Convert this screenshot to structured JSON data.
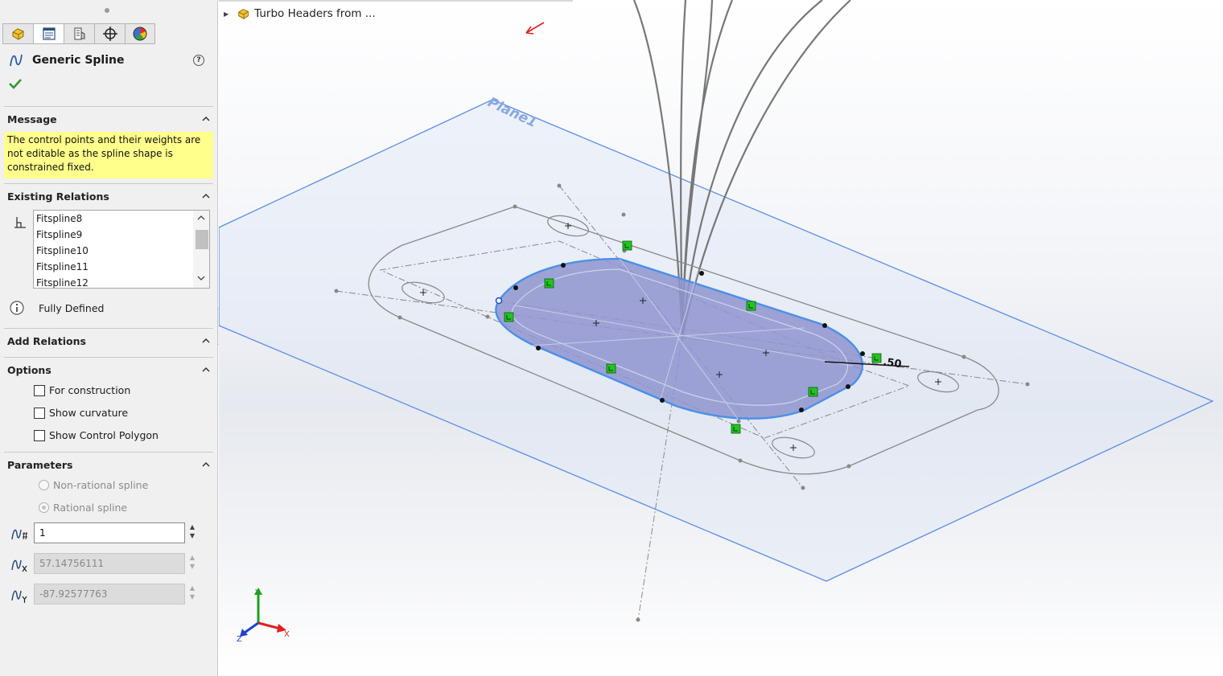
{
  "feature_manager": {
    "tabs": [
      {
        "name": "part-icon",
        "active": false
      },
      {
        "name": "property-manager-icon",
        "active": true
      },
      {
        "name": "configuration-manager-icon",
        "active": false
      },
      {
        "name": "dimxpert-icon",
        "active": false
      },
      {
        "name": "display-manager-icon",
        "active": false
      }
    ]
  },
  "panel": {
    "title": "Generic Spline",
    "help_icon": "?",
    "ok_icon": "checkmark-icon"
  },
  "message": {
    "header": "Message",
    "text": "The control points and their weights are not editable as the spline shape is constrained fixed."
  },
  "existing_relations": {
    "header": "Existing Relations",
    "items": [
      "Fitspline8",
      "Fitspline9",
      "Fitspline10",
      "Fitspline11",
      "Fitspline12"
    ],
    "status": "Fully Defined"
  },
  "add_relations": {
    "header": "Add Relations"
  },
  "options": {
    "header": "Options",
    "checkboxes": [
      {
        "label": "For construction",
        "checked": false
      },
      {
        "label": "Show curvature",
        "checked": false
      },
      {
        "label": "Show Control Polygon",
        "checked": false
      }
    ]
  },
  "parameters": {
    "header": "Parameters",
    "radios": [
      {
        "label": "Non-rational spline",
        "selected": false
      },
      {
        "label": "Rational spline",
        "selected": true
      }
    ],
    "fields": [
      {
        "value": "1",
        "enabled": true
      },
      {
        "value": "57.14756111",
        "enabled": false
      },
      {
        "value": "-87.92577763",
        "enabled": false
      }
    ]
  },
  "viewport": {
    "tree_item": "Turbo Headers from ...",
    "plane_label": "Plane1",
    "dimension_label": ".50",
    "triad": {
      "x": "X",
      "y": "Y",
      "z": "Z"
    },
    "colors": {
      "plane": "#5b8ee6",
      "fill": "#8f94cf",
      "relation": "#22c422",
      "x": "#e02020",
      "y": "#1ea01e",
      "z": "#2040d0"
    }
  }
}
